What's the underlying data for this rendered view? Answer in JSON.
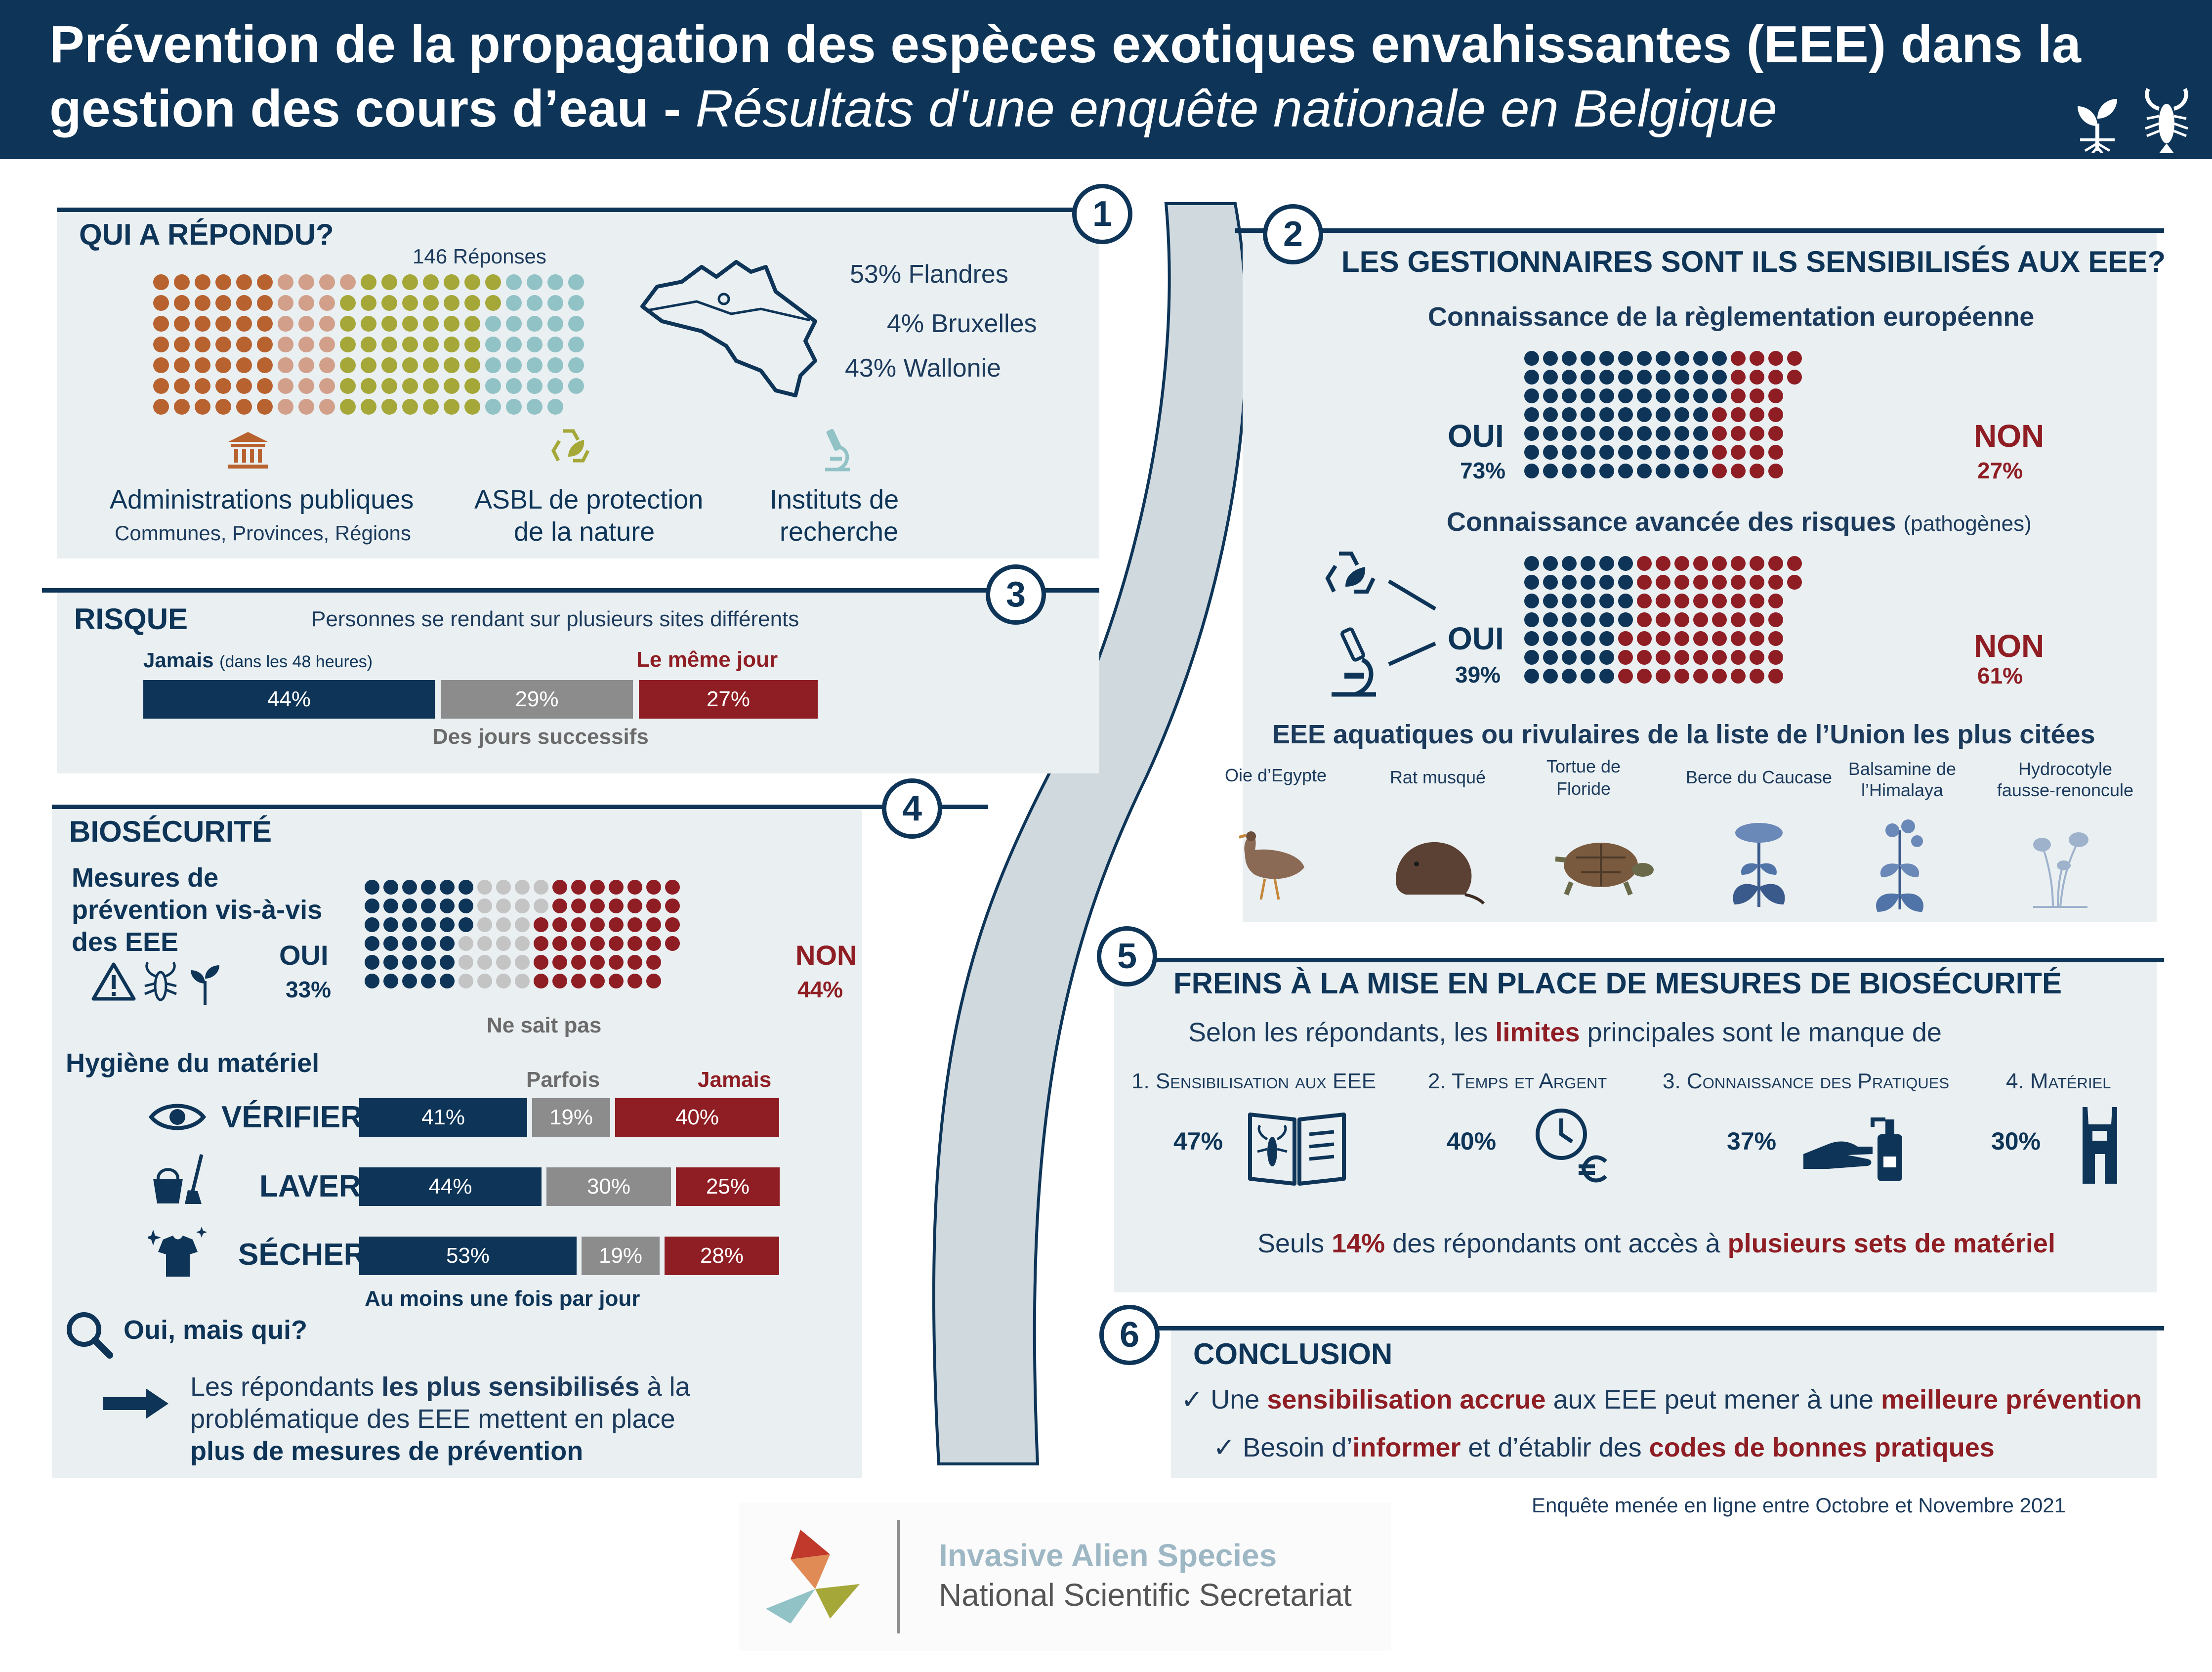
{
  "header": {
    "title_line1": "Prévention de la propagation des espèces exotiques envahissantes (EEE) dans la",
    "title_line2": "gestion des cours d’eau - ",
    "title_line2_italic": "Résultats d'une enquête nationale en Belgique"
  },
  "section1": {
    "number": "1",
    "title": "QUI A RÉPONDU?",
    "responses": "146 Réponses",
    "regions": [
      "53% Flandres",
      "4% Bruxelles",
      "43% Wallonie"
    ],
    "categories": [
      {
        "label": "Administrations publiques",
        "sub": "Communes, Provinces, Régions",
        "color": "#b8622f",
        "icon": "bank-icon"
      },
      {
        "label": "ASBL de protection",
        "label2": "de la nature",
        "color": "#a5a838",
        "icon": "recycle-leaf-icon"
      },
      {
        "label": "Instituts de",
        "label2": "recherche",
        "color": "#90c2c6",
        "icon": "microscope-icon"
      }
    ]
  },
  "section2": {
    "number": "2",
    "title": "LES GESTIONNAIRES SONT ILS SENSIBILISÉS AUX EEE?",
    "q1": "Connaissance de la règlementation européenne",
    "q1_yes": "OUI",
    "q1_yes_pct": "73%",
    "q1_no": "NON",
    "q1_no_pct": "27%",
    "q1_yes_value": 73,
    "q2": "Connaissance avancée des risques",
    "q2_sub": "(pathogènes)",
    "q2_yes": "OUI",
    "q2_yes_pct": "39%",
    "q2_no": "NON",
    "q2_no_pct": "61%",
    "q2_yes_value": 39,
    "species_title": "EEE aquatiques ou rivulaires de la liste de l’Union les plus citées",
    "species": [
      {
        "name": "Oie d’Egypte",
        "icon": "goose-icon"
      },
      {
        "name": "Rat musqué",
        "icon": "muskrat-icon"
      },
      {
        "name": "Tortue de",
        "name2": "Floride",
        "icon": "turtle-icon"
      },
      {
        "name": "Berce du Caucase",
        "icon": "hogweed-icon"
      },
      {
        "name": "Balsamine de",
        "name2": "l’Himalaya",
        "icon": "balsam-icon"
      },
      {
        "name": "Hydrocotyle",
        "name2": "fausse-renoncule",
        "icon": "pennywort-icon"
      }
    ]
  },
  "section3": {
    "number": "3",
    "title": "RISQUE",
    "subtitle": "Personnes se rendant sur plusieurs sites différents",
    "label_never": "Jamais",
    "label_never_sub": "(dans les 48 heures)",
    "label_same_day": "Le même jour",
    "label_successive": "Des jours successifs",
    "bars": [
      {
        "label": "44%",
        "value": 44,
        "color": "#0e3558"
      },
      {
        "label": "29%",
        "value": 29,
        "color": "#8c8c8c"
      },
      {
        "label": "27%",
        "value": 27,
        "color": "#8f1e24"
      }
    ]
  },
  "section4": {
    "number": "4",
    "title": "BIOSÉCURITÉ",
    "measures_line1": "Mesures de",
    "measures_line2": "prévention vis-à-vis",
    "measures_line3": "des EEE",
    "yes": "OUI",
    "yes_pct": "33%",
    "no": "NON",
    "no_pct": "44%",
    "unknown": "Ne sait pas",
    "dots": {
      "yes": 33,
      "unknown": 23,
      "no": 44
    },
    "hygiene_title": "Hygiène du matériel",
    "col_sometimes": "Parfois",
    "col_never": "Jamais",
    "rows": [
      {
        "label": "VÉRIFIER",
        "icon": "eye-icon",
        "values": [
          41,
          19,
          40
        ],
        "labels": [
          "41%",
          "19%",
          "40%"
        ]
      },
      {
        "label": "LAVER",
        "icon": "bucket-broom-icon",
        "values": [
          44,
          30,
          25
        ],
        "labels": [
          "44%",
          "30%",
          "25%"
        ]
      },
      {
        "label": "SÉCHER",
        "icon": "shirt-sparkle-icon",
        "values": [
          53,
          19,
          28
        ],
        "labels": [
          "53%",
          "19%",
          "28%"
        ]
      }
    ],
    "footer_bar_label": "Au moins une fois par jour",
    "who_question": "Oui, mais qui?",
    "conclusion_parts": {
      "a": "Les répondants ",
      "b": "les plus sensibilisés",
      "c": " à la",
      "d": "problématique des EEE mettent en place",
      "e": "plus de mesures de prévention"
    }
  },
  "section5": {
    "number": "5",
    "title": "FREINS À LA MISE EN PLACE DE MESURES DE BIOSÉCURITÉ",
    "intro_a": "Selon les répondants, les ",
    "intro_b": "limites",
    "intro_c": " principales sont le manque de",
    "items": [
      {
        "label": "1. Sensibilisation aux EEE",
        "pct": "47%",
        "icon": "book-crayfish-icon"
      },
      {
        "label": "2. Temps et Argent",
        "pct": "40%",
        "icon": "clock-euro-icon"
      },
      {
        "label": "3. Connaissance des Pratiques",
        "pct": "37%",
        "icon": "hand-soap-icon"
      },
      {
        "label": "4. Matériel",
        "pct": "30%",
        "icon": "waders-icon"
      }
    ],
    "note_a": "Seuls ",
    "note_b": "14%",
    "note_c": " des répondants ont accès à ",
    "note_d": "plusieurs sets de matériel"
  },
  "section6": {
    "number": "6",
    "title": "CONCLUSION",
    "line1_a": "✓ Une ",
    "line1_b": "sensibilisation accrue",
    "line1_c": " aux EEE peut mener à une ",
    "line1_d": "meilleure prévention",
    "line2_a": "✓ Besoin d’",
    "line2_b": "informer",
    "line2_c": " et d’établir des ",
    "line2_d": "codes de bonnes pratiques"
  },
  "footer": {
    "survey_note": "Enquête menée en ligne entre Octobre et Novembre 2021",
    "org_line1": "Invasive Alien Species",
    "org_line2": "National Scientific Secretariat"
  },
  "colors": {
    "navy": "#0e3558",
    "red": "#8f1e24",
    "grey": "#8c8c8c",
    "panel": "#eaeff1",
    "river": "#cfd9de"
  }
}
